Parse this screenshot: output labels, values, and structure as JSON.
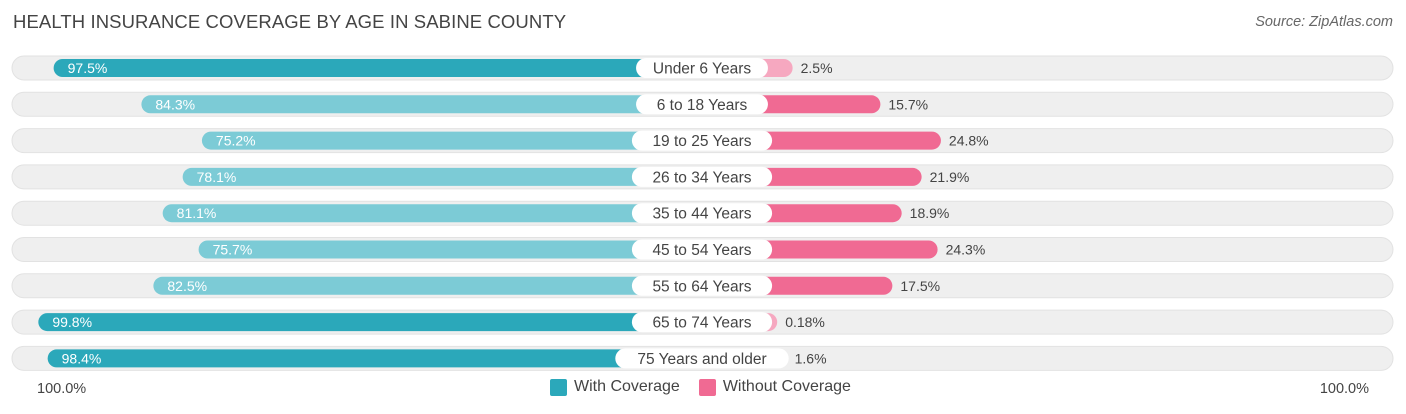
{
  "header": {
    "title": "HEALTH INSURANCE COVERAGE BY AGE IN SABINE COUNTY",
    "source": "Source: ZipAtlas.com"
  },
  "axis": {
    "left_label": "100.0%",
    "right_label": "100.0%"
  },
  "legend": {
    "with_label": "With Coverage",
    "without_label": "Without Coverage"
  },
  "colors": {
    "with_dark": "#2ba8ba",
    "with_light": "#7ccbd6",
    "without_dark": "#f06a93",
    "without_light": "#f6a8c0",
    "track": "#efefef"
  },
  "chart_data": {
    "type": "bar",
    "orientation": "horizontal-diverging",
    "title": "HEALTH INSURANCE COVERAGE BY AGE IN SABINE COUNTY",
    "categories": [
      "Under 6 Years",
      "6 to 18 Years",
      "19 to 25 Years",
      "26 to 34 Years",
      "35 to 44 Years",
      "45 to 54 Years",
      "55 to 64 Years",
      "65 to 74 Years",
      "75 Years and older"
    ],
    "series": [
      {
        "name": "With Coverage",
        "values": [
          97.5,
          84.3,
          75.2,
          78.1,
          81.1,
          75.7,
          82.5,
          99.8,
          98.4
        ],
        "labels": [
          "97.5%",
          "84.3%",
          "75.2%",
          "78.1%",
          "81.1%",
          "75.7%",
          "82.5%",
          "99.8%",
          "98.4%"
        ]
      },
      {
        "name": "Without Coverage",
        "values": [
          2.5,
          15.7,
          24.8,
          21.9,
          18.9,
          24.3,
          17.5,
          0.18,
          1.6
        ],
        "labels": [
          "2.5%",
          "15.7%",
          "24.8%",
          "21.9%",
          "18.9%",
          "24.3%",
          "17.5%",
          "0.18%",
          "1.6%"
        ]
      }
    ],
    "xlim": [
      -100,
      100
    ]
  }
}
